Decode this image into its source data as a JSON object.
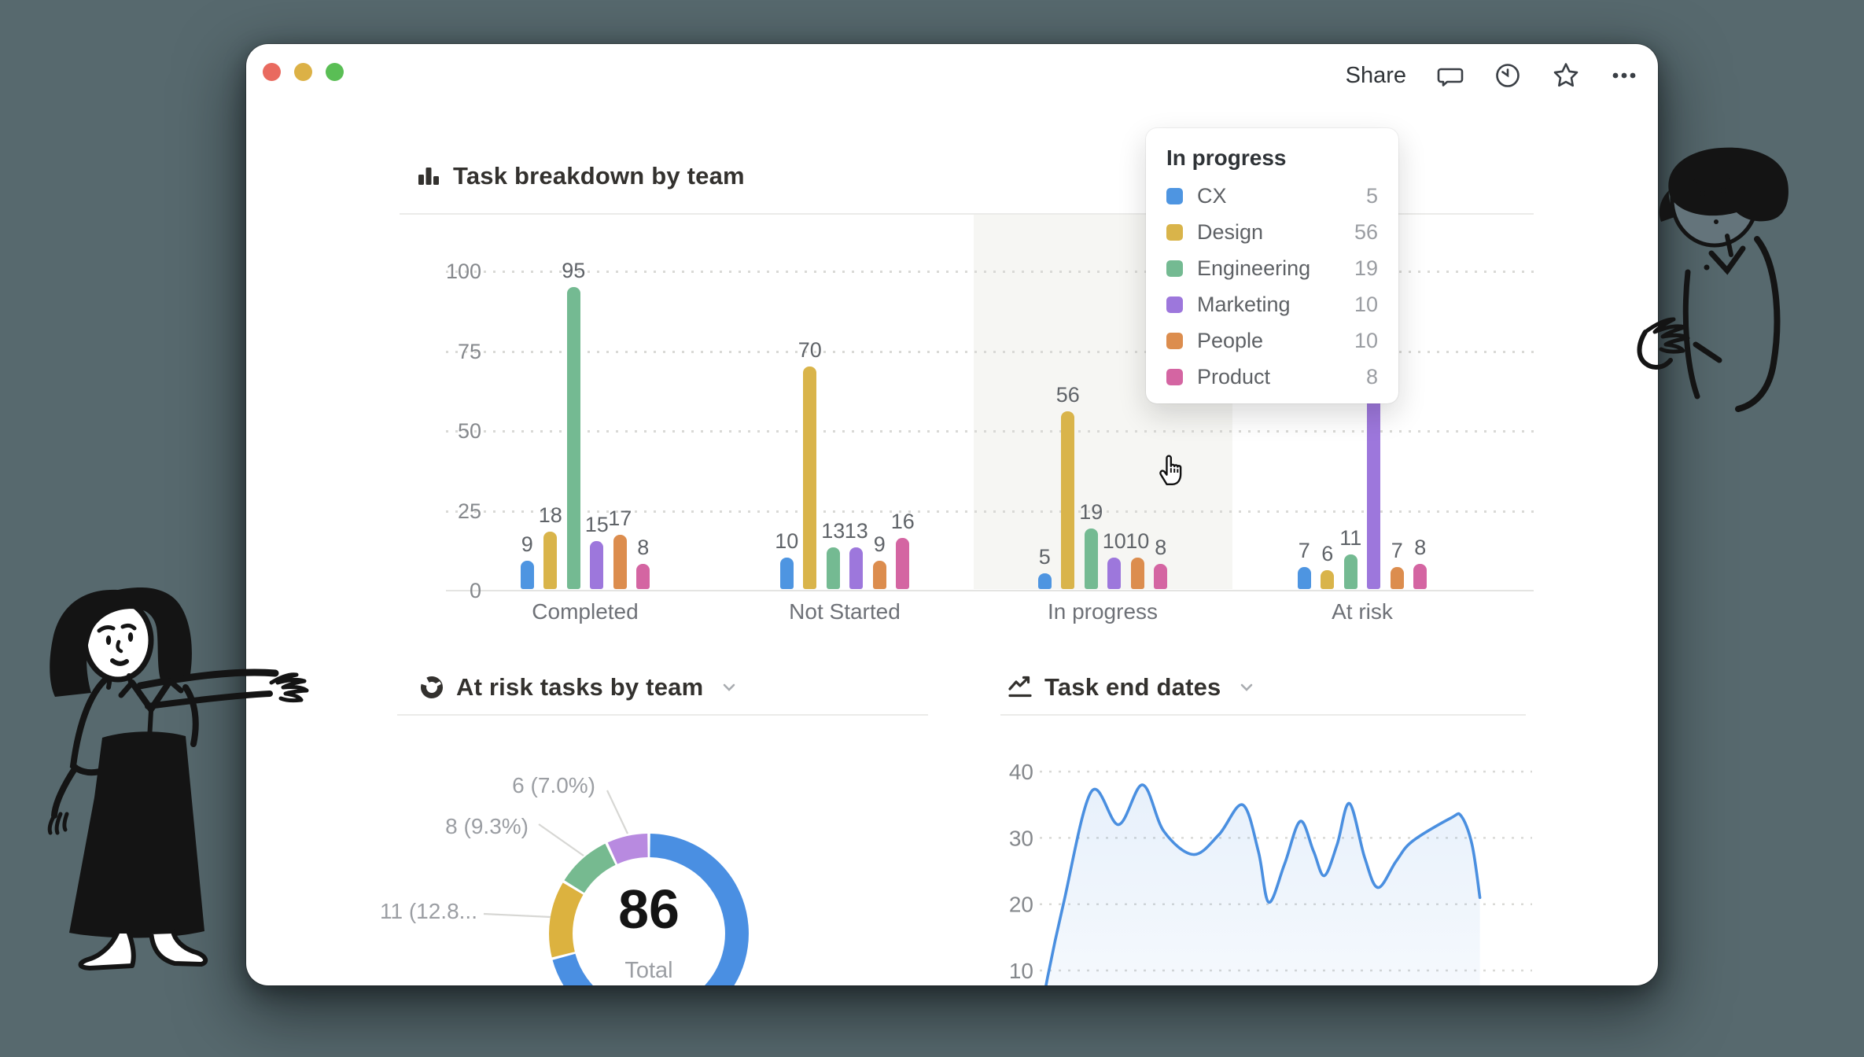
{
  "titlebar": {
    "share_label": "Share",
    "window_buttons": [
      "close",
      "minimize",
      "zoom"
    ],
    "icons": [
      "comment",
      "history",
      "favorite",
      "more"
    ]
  },
  "teams": [
    {
      "name": "CX",
      "color": "#4e95e1"
    },
    {
      "name": "Design",
      "color": "#d9b44a"
    },
    {
      "name": "Engineering",
      "color": "#74ba92"
    },
    {
      "name": "Marketing",
      "color": "#9d77dc"
    },
    {
      "name": "People",
      "color": "#dc8d4e"
    },
    {
      "name": "Product",
      "color": "#d465a2"
    }
  ],
  "chart_data": [
    {
      "type": "bar",
      "title": "Task breakdown by team",
      "categories": [
        "Completed",
        "Not Started",
        "In progress",
        "At risk"
      ],
      "y_ticks": [
        100,
        75,
        50,
        25,
        0
      ],
      "ylim": [
        0,
        100
      ],
      "grid": "dotted",
      "highlighted_category": "In progress",
      "series": [
        {
          "name": "CX",
          "color": "#4e95e1",
          "values": [
            9,
            10,
            5,
            7
          ]
        },
        {
          "name": "Design",
          "color": "#d9b44a",
          "values": [
            18,
            70,
            56,
            6
          ]
        },
        {
          "name": "Engineering",
          "color": "#74ba92",
          "values": [
            95,
            13,
            19,
            11
          ]
        },
        {
          "name": "Marketing",
          "color": "#9d77dc",
          "values": [
            15,
            13,
            10,
            null
          ],
          "hidden_value_note": "At risk bar top and value label hidden behind tooltip",
          "at_risk_render_height_units": 62
        },
        {
          "name": "People",
          "color": "#dc8d4e",
          "values": [
            17,
            9,
            10,
            7
          ]
        },
        {
          "name": "Product",
          "color": "#d465a2",
          "values": [
            8,
            16,
            8,
            8
          ]
        }
      ]
    },
    {
      "type": "pie",
      "title": "At risk tasks by team",
      "total_value": "86",
      "total_label": "Total",
      "slices": [
        {
          "value": 61,
          "color": "#4a8fe2",
          "label": ""
        },
        {
          "value": 11,
          "color": "#dcb23f",
          "label": "11 (12.8..."
        },
        {
          "value": 8,
          "color": "#76ba90",
          "label": "8 (9.3%)"
        },
        {
          "value": 6,
          "color": "#b88ae0",
          "label": "6 (7.0%)"
        }
      ]
    },
    {
      "type": "area",
      "title": "Task end dates",
      "y_ticks": [
        40,
        30,
        20,
        10
      ],
      "grid": "dotted",
      "line_color": "#4a8fe0",
      "points": [
        [
          0,
          2
        ],
        [
          0.016,
          9
        ],
        [
          0.048,
          20
        ],
        [
          0.105,
          37
        ],
        [
          0.16,
          32
        ],
        [
          0.209,
          38
        ],
        [
          0.252,
          31
        ],
        [
          0.312,
          27.5
        ],
        [
          0.364,
          30.5
        ],
        [
          0.412,
          35
        ],
        [
          0.444,
          28
        ],
        [
          0.465,
          20.3
        ],
        [
          0.497,
          26
        ],
        [
          0.529,
          32.5
        ],
        [
          0.556,
          28
        ],
        [
          0.578,
          24.3
        ],
        [
          0.604,
          29
        ],
        [
          0.629,
          35.2
        ],
        [
          0.66,
          27
        ],
        [
          0.687,
          22.5
        ],
        [
          0.724,
          26.5
        ],
        [
          0.757,
          29.5
        ],
        [
          0.835,
          33
        ],
        [
          0.856,
          33.3
        ],
        [
          0.878,
          29
        ],
        [
          0.894,
          21
        ]
      ]
    }
  ],
  "tooltip": {
    "title": "In progress",
    "rows": [
      {
        "team": "CX",
        "value": 5
      },
      {
        "team": "Design",
        "value": 56
      },
      {
        "team": "Engineering",
        "value": 19
      },
      {
        "team": "Marketing",
        "value": 10
      },
      {
        "team": "People",
        "value": 10
      },
      {
        "team": "Product",
        "value": 8
      }
    ]
  }
}
